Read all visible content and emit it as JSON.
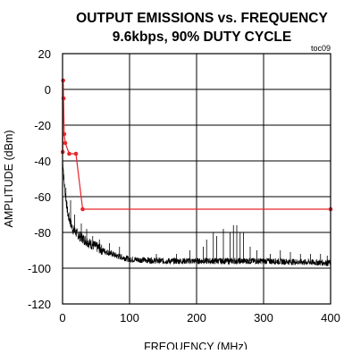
{
  "chart_data": {
    "type": "line",
    "title": "OUTPUT EMISSIONS vs. FREQUENCY",
    "subtitle": "9.6kbps, 90% DUTY CYCLE",
    "tag": "toc09",
    "xlabel": "FREQUENCY (MHz)",
    "ylabel": "AMPLITUDE (dBm)",
    "xlim": [
      0,
      400
    ],
    "ylim": [
      -120,
      20
    ],
    "x_ticks": [
      0,
      100,
      200,
      300,
      400
    ],
    "y_ticks": [
      20,
      0,
      -20,
      -40,
      -60,
      -80,
      -100,
      -120
    ],
    "grid": true,
    "series": [
      {
        "color": "#e8262b",
        "marker": "circle",
        "points": [
          [
            0.3,
            -35
          ],
          [
            0.9,
            5
          ],
          [
            1.5,
            -5
          ],
          [
            2.5,
            -25
          ],
          [
            4,
            -30
          ],
          [
            10,
            -36
          ],
          [
            20,
            -36
          ],
          [
            30,
            -67
          ],
          [
            400,
            -67
          ]
        ]
      },
      {
        "color": "#000000",
        "marker": "none",
        "envelope": [
          [
            0.5,
            -40
          ],
          [
            2,
            -50
          ],
          [
            4,
            -58
          ],
          [
            8,
            -70
          ],
          [
            15,
            -78
          ],
          [
            25,
            -82
          ],
          [
            40,
            -86
          ],
          [
            60,
            -90
          ],
          [
            80,
            -93
          ],
          [
            100,
            -95
          ],
          [
            150,
            -96
          ],
          [
            200,
            -96
          ],
          [
            250,
            -96
          ],
          [
            300,
            -96
          ],
          [
            350,
            -96.5
          ],
          [
            400,
            -97
          ]
        ],
        "spurs": [
          [
            5,
            -55
          ],
          [
            12,
            -62
          ],
          [
            18,
            -70
          ],
          [
            28,
            -75
          ],
          [
            36,
            -78
          ],
          [
            45,
            -82
          ],
          [
            55,
            -84
          ],
          [
            70,
            -86
          ],
          [
            85,
            -88
          ],
          [
            140,
            -92
          ],
          [
            170,
            -92
          ],
          [
            190,
            -90
          ],
          [
            200,
            -88
          ],
          [
            210,
            -88
          ],
          [
            215,
            -84
          ],
          [
            225,
            -80
          ],
          [
            230,
            -82
          ],
          [
            240,
            -78
          ],
          [
            250,
            -80
          ],
          [
            255,
            -76
          ],
          [
            260,
            -76
          ],
          [
            265,
            -80
          ],
          [
            270,
            -80
          ],
          [
            280,
            -88
          ],
          [
            290,
            -90
          ],
          [
            300,
            -90
          ],
          [
            310,
            -92
          ],
          [
            325,
            -90
          ],
          [
            340,
            -91
          ],
          [
            355,
            -92
          ],
          [
            370,
            -92
          ],
          [
            385,
            -92
          ],
          [
            395,
            -93
          ]
        ]
      }
    ]
  }
}
